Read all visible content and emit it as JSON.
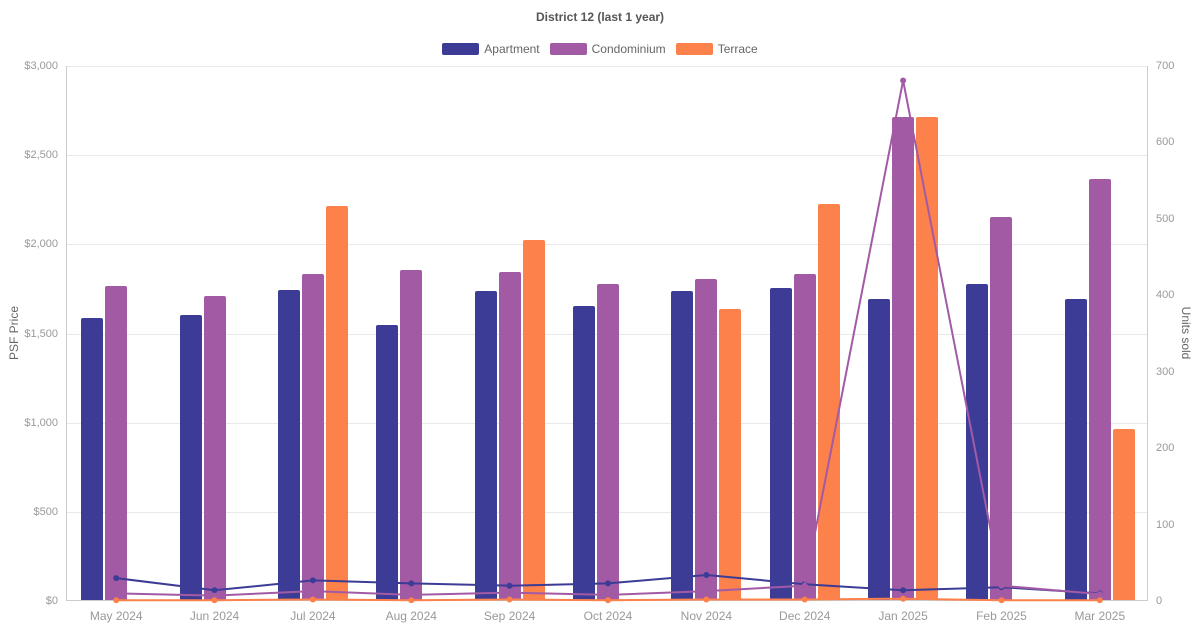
{
  "chart_data": {
    "type": "bar",
    "subtype": "bar-line-combo",
    "title": "District 12 (last 1 year)",
    "legend_position": "top-center",
    "grid": true,
    "categories": [
      "May 2024",
      "Jun 2024",
      "Jul 2024",
      "Aug 2024",
      "Sep 2024",
      "Oct 2024",
      "Nov 2024",
      "Dec 2024",
      "Jan 2025",
      "Feb 2025",
      "Mar 2025"
    ],
    "left_axis": {
      "label": "PSF Price",
      "min": 0,
      "max": 3000,
      "tick_step": 500,
      "ticks": [
        "$0",
        "$500",
        "$1,000",
        "$1,500",
        "$2,000",
        "$2,500",
        "$3,000"
      ]
    },
    "right_axis": {
      "label": "Units sold",
      "min": 0,
      "max": 700,
      "tick_step": 100,
      "ticks": [
        "0",
        "100",
        "200",
        "300",
        "400",
        "500",
        "600",
        "700"
      ]
    },
    "legend": [
      "Apartment",
      "Condominium",
      "Terrace"
    ],
    "bar_series": [
      {
        "name": "Apartment",
        "color": "#3c3c96",
        "axis": "left",
        "unit": "PSF Price $",
        "values": [
          1580,
          1600,
          1740,
          1540,
          1730,
          1650,
          1730,
          1750,
          1690,
          1770,
          1690
        ]
      },
      {
        "name": "Condominium",
        "color": "#a35aa5",
        "axis": "left",
        "unit": "PSF Price $",
        "values": [
          1760,
          1705,
          1830,
          1850,
          1840,
          1770,
          1800,
          1830,
          2710,
          2150,
          2360
        ]
      },
      {
        "name": "Terrace",
        "color": "#fc814a",
        "axis": "left",
        "unit": "PSF Price $",
        "values": [
          null,
          null,
          2210,
          null,
          2020,
          null,
          1630,
          2220,
          2710,
          null,
          960
        ]
      }
    ],
    "line_series": [
      {
        "name": "Apartment",
        "color": "#3c3c96",
        "axis": "right",
        "unit": "Units sold",
        "values": [
          30,
          14,
          27,
          23,
          20,
          23,
          34,
          22,
          14,
          18,
          10
        ]
      },
      {
        "name": "Condominium",
        "color": "#a35aa5",
        "axis": "right",
        "unit": "Units sold",
        "values": [
          10,
          7,
          13,
          8,
          11,
          8,
          13,
          20,
          681,
          20,
          9
        ]
      },
      {
        "name": "Terrace",
        "color": "#fc814a",
        "axis": "right",
        "unit": "Units sold",
        "values": [
          1,
          1,
          2,
          1,
          2,
          1,
          2,
          2,
          3,
          1,
          1
        ]
      }
    ]
  }
}
